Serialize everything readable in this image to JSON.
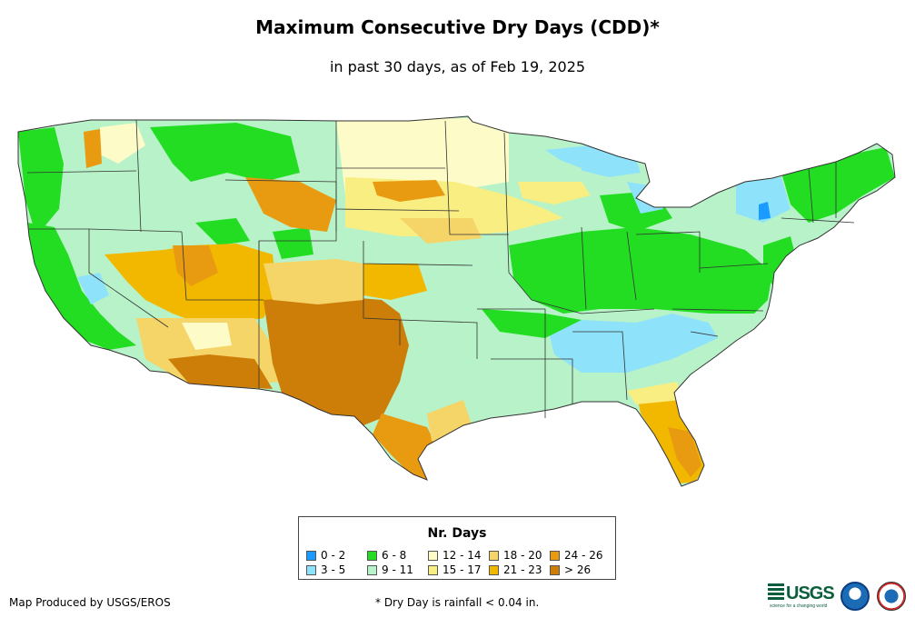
{
  "title": "Maximum Consecutive Dry Days (CDD)*",
  "subtitle": "in past 30 days, as of Feb 19, 2025",
  "legend": {
    "title": "Nr. Days",
    "items": [
      {
        "label": "0 - 2",
        "color": "#1a9bff"
      },
      {
        "label": "3 - 5",
        "color": "#8ee2fa"
      },
      {
        "label": "6 - 8",
        "color": "#22dd22"
      },
      {
        "label": "9 - 11",
        "color": "#b8f2c8"
      },
      {
        "label": "12 - 14",
        "color": "#fdfbc8"
      },
      {
        "label": "15 - 17",
        "color": "#f9ee82"
      },
      {
        "label": "18 - 20",
        "color": "#f5d468"
      },
      {
        "label": "21 - 23",
        "color": "#f2b800"
      },
      {
        "label": "24 - 26",
        "color": "#e89a10"
      },
      {
        "label": "> 26",
        "color": "#cc7e08"
      }
    ]
  },
  "footer": {
    "producer": "Map Produced by USGS/EROS",
    "note": "* Dry Day is rainfall < 0.04 in."
  },
  "logos": {
    "usgs": "USGS",
    "usgs_tagline": "science for a changing world",
    "noaa": "noaa-logo",
    "nws": "nws-logo"
  }
}
